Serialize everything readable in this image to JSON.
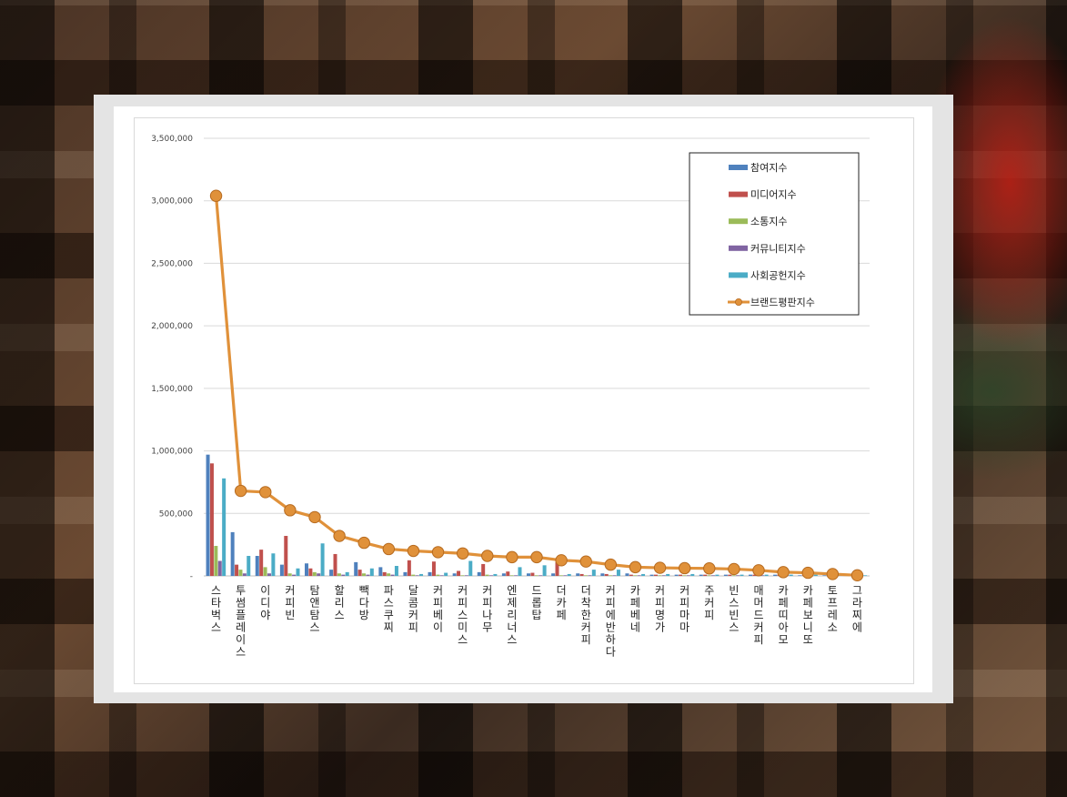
{
  "chart_data": {
    "type": "bar",
    "title": "",
    "xlabel": "",
    "ylabel": "",
    "ylim": [
      0,
      3500000
    ],
    "yticks": [
      0,
      500000,
      1000000,
      1500000,
      2000000,
      2500000,
      3000000,
      3500000
    ],
    "ytick_labels": [
      "-",
      "500,000",
      "1,000,000",
      "1,500,000",
      "2,000,000",
      "2,500,000",
      "3,000,000",
      "3,500,000"
    ],
    "grid": true,
    "legend_position": "top-right",
    "categories": [
      "스타벅스",
      "투썸플레이스",
      "이디야",
      "커피빈",
      "탐앤탐스",
      "할리스",
      "빽다방",
      "파스쿠찌",
      "달콤커피",
      "커피베이",
      "커피스미스",
      "커피나무",
      "엔제리너스",
      "드롭탑",
      "더카페",
      "더착한커피",
      "커피에반하다",
      "카페베네",
      "커피명가",
      "커피마마",
      "주커피",
      "빈스빈스",
      "매머드커피",
      "카페띠아모",
      "카페보니또",
      "토프레소",
      "그라찌에"
    ],
    "series": [
      {
        "name": "참여지수",
        "kind": "bar",
        "color": "#4f81bd",
        "values": [
          970000,
          350000,
          160000,
          90000,
          100000,
          50000,
          110000,
          70000,
          30000,
          30000,
          20000,
          30000,
          20000,
          20000,
          20000,
          20000,
          20000,
          20000,
          10000,
          10000,
          10000,
          10000,
          10000,
          10000,
          5000,
          5000,
          5000
        ]
      },
      {
        "name": "미디어지수",
        "kind": "bar",
        "color": "#c0504d",
        "values": [
          900000,
          90000,
          210000,
          320000,
          60000,
          175000,
          50000,
          30000,
          125000,
          115000,
          40000,
          95000,
          35000,
          25000,
          110000,
          15000,
          15000,
          10000,
          10000,
          10000,
          10000,
          10000,
          10000,
          10000,
          5000,
          5000,
          5000
        ]
      },
      {
        "name": "소통지수",
        "kind": "bar",
        "color": "#9bbb59",
        "values": [
          240000,
          50000,
          70000,
          20000,
          30000,
          20000,
          20000,
          20000,
          10000,
          10000,
          5000,
          10000,
          5000,
          5000,
          5000,
          5000,
          5000,
          5000,
          5000,
          5000,
          5000,
          5000,
          5000,
          5000,
          5000,
          5000,
          5000
        ]
      },
      {
        "name": "커뮤니티지수",
        "kind": "bar",
        "color": "#8064a2",
        "values": [
          120000,
          20000,
          20000,
          10000,
          20000,
          10000,
          10000,
          10000,
          5000,
          5000,
          5000,
          5000,
          5000,
          5000,
          5000,
          5000,
          5000,
          5000,
          5000,
          5000,
          5000,
          5000,
          5000,
          5000,
          5000,
          5000,
          5000
        ]
      },
      {
        "name": "사회공헌지수",
        "kind": "bar",
        "color": "#4bacc6",
        "values": [
          780000,
          160000,
          180000,
          60000,
          260000,
          30000,
          60000,
          80000,
          15000,
          25000,
          120000,
          15000,
          70000,
          85000,
          15000,
          50000,
          50000,
          15000,
          15000,
          15000,
          10000,
          10000,
          10000,
          10000,
          10000,
          10000,
          5000
        ]
      },
      {
        "name": "브랜드평판지수",
        "kind": "line",
        "color": "#e0913a",
        "values": [
          3040000,
          680000,
          670000,
          525000,
          470000,
          320000,
          265000,
          215000,
          200000,
          190000,
          180000,
          160000,
          150000,
          150000,
          125000,
          115000,
          90000,
          70000,
          65000,
          62000,
          60000,
          55000,
          45000,
          30000,
          25000,
          15000,
          5000
        ]
      }
    ]
  }
}
